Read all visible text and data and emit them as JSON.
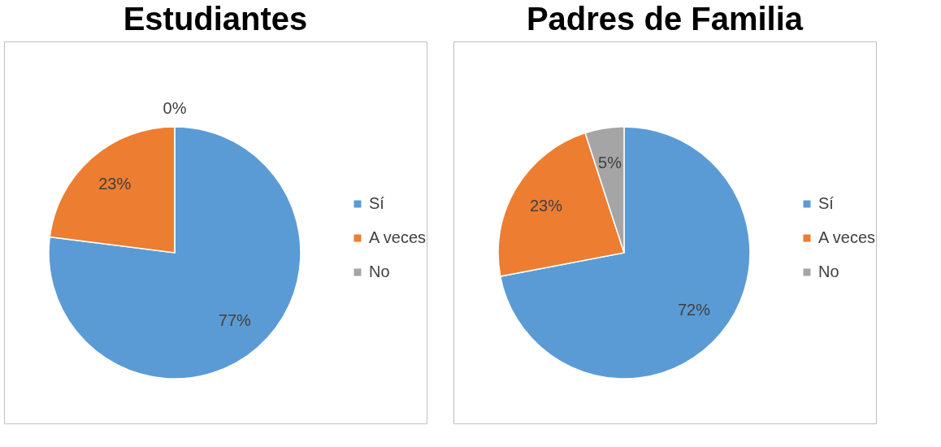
{
  "chart_data": [
    {
      "type": "pie",
      "title": "Estudiantes",
      "categories": [
        "Sí",
        "A veces",
        "No"
      ],
      "values": [
        77,
        23,
        0
      ],
      "colors": [
        "#5b9bd5",
        "#ed7d31",
        "#a5a5a5"
      ],
      "value_labels": [
        "77%",
        "23%",
        "0%"
      ],
      "legend": "right"
    },
    {
      "type": "pie",
      "title": "Padres de Familia",
      "categories": [
        "Sí",
        "A veces",
        "No"
      ],
      "values": [
        72,
        23,
        5
      ],
      "colors": [
        "#5b9bd5",
        "#ed7d31",
        "#a5a5a5"
      ],
      "value_labels": [
        "72%",
        "23%",
        "5%"
      ],
      "legend": "right"
    }
  ]
}
